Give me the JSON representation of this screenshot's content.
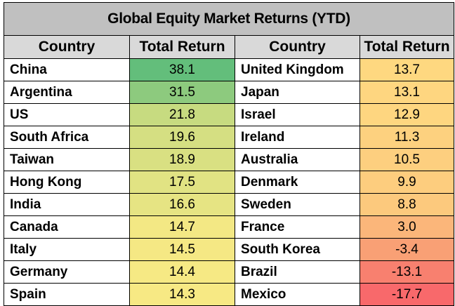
{
  "chart_data": {
    "type": "table",
    "title": "Global Equity Market Returns (YTD)",
    "columns": [
      "Country",
      "Total Return",
      "Country",
      "Total Return"
    ],
    "rows": [
      {
        "left": {
          "country": "China",
          "value": "38.1",
          "color": "#63be7b"
        },
        "right": {
          "country": "United Kingdom",
          "value": "13.7",
          "color": "#fed880"
        }
      },
      {
        "left": {
          "country": "Argentina",
          "value": "31.5",
          "color": "#8dca7e"
        },
        "right": {
          "country": "Japan",
          "value": "13.1",
          "color": "#fed680"
        }
      },
      {
        "left": {
          "country": "US",
          "value": "21.8",
          "color": "#c7db80"
        },
        "right": {
          "country": "Israel",
          "value": "12.9",
          "color": "#fed680"
        }
      },
      {
        "left": {
          "country": "South Africa",
          "value": "19.6",
          "color": "#d5df82"
        },
        "right": {
          "country": "Ireland",
          "value": "11.3",
          "color": "#fdd17f"
        }
      },
      {
        "left": {
          "country": "Taiwan",
          "value": "18.9",
          "color": "#d9e082"
        },
        "right": {
          "country": "Australia",
          "value": "10.5",
          "color": "#fdcf7f"
        }
      },
      {
        "left": {
          "country": "Hong Kong",
          "value": "17.5",
          "color": "#e1e383"
        },
        "right": {
          "country": "Denmark",
          "value": "9.9",
          "color": "#fdcd7e"
        }
      },
      {
        "left": {
          "country": "India",
          "value": "16.6",
          "color": "#e6e483"
        },
        "right": {
          "country": "Sweden",
          "value": "8.8",
          "color": "#fcc97d"
        }
      },
      {
        "left": {
          "country": "Canada",
          "value": "14.7",
          "color": "#f3e884"
        },
        "right": {
          "country": "France",
          "value": "3.0",
          "color": "#fbb67a"
        }
      },
      {
        "left": {
          "country": "Italy",
          "value": "14.5",
          "color": "#f5e884"
        },
        "right": {
          "country": "South Korea",
          "value": "-3.4",
          "color": "#f9a075"
        }
      },
      {
        "left": {
          "country": "Germany",
          "value": "14.4",
          "color": "#f6e984"
        },
        "right": {
          "country": "Brazil",
          "value": "-13.1",
          "color": "#f8806f"
        }
      },
      {
        "left": {
          "country": "Spain",
          "value": "14.3",
          "color": "#f7e984"
        },
        "right": {
          "country": "Mexico",
          "value": "-17.7",
          "color": "#f8696b"
        }
      }
    ]
  }
}
